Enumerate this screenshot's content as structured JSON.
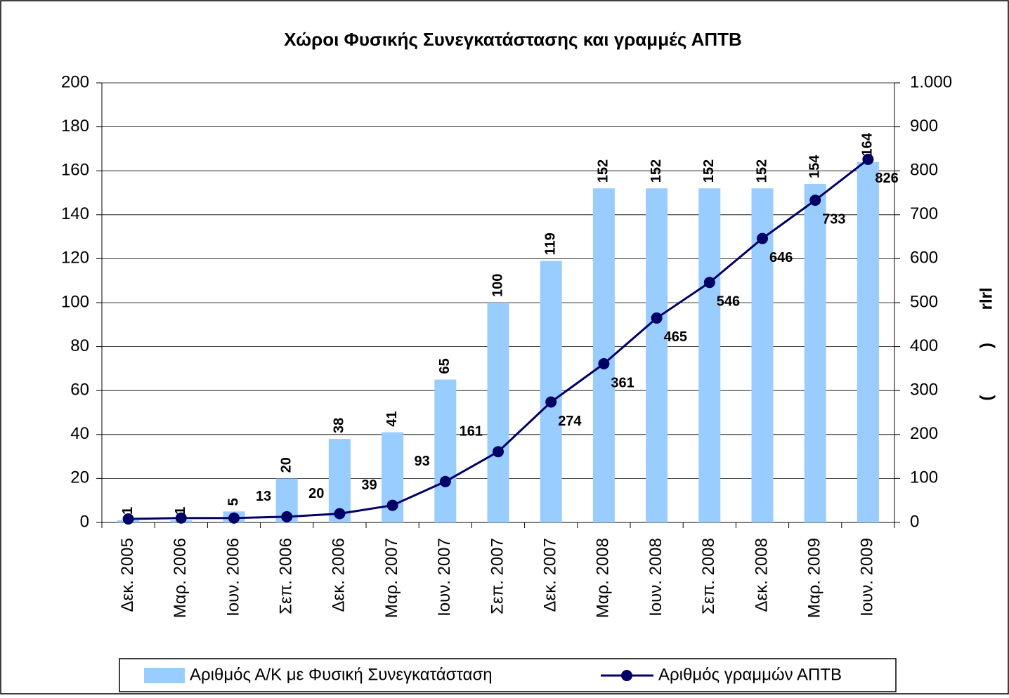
{
  "chart_data": {
    "type": "bar_line",
    "title": "Χώροι Φυσικής Συνεγκατάστασης και γραμμές ΑΠΤΒ",
    "y2label": "(          )       rlrl",
    "categories": [
      "Δεκ. 2005",
      "Μαρ. 2006",
      "Ιουν. 2006",
      "Σεπ. 2006",
      "Δεκ. 2006",
      "Μαρ. 2007",
      "Ιουν. 2007",
      "Σεπ. 2007",
      "Δεκ. 2007",
      "Μαρ. 2008",
      "Ιουν. 2008",
      "Σεπ. 2008",
      "Δεκ. 2008",
      "Μαρ. 2009",
      "Ιουν. 2009"
    ],
    "series": [
      {
        "name": "Αριθμός Α/Κ με Φυσική Συνεγκατάσταση",
        "color": "#99ccff",
        "type": "bar",
        "values": [
          1,
          1,
          5,
          20,
          38,
          41,
          65,
          100,
          119,
          152,
          152,
          152,
          152,
          154,
          164
        ]
      },
      {
        "name": "Αριθμός γραμμών ΑΠΤΒ",
        "color": "#000066",
        "type": "line",
        "axis": "y2",
        "values": [
          8,
          10,
          10,
          13,
          20,
          39,
          93,
          161,
          274,
          361,
          465,
          546,
          646,
          733,
          826
        ],
        "value_labels": [
          null,
          null,
          null,
          "13",
          "20",
          "39",
          "93",
          "161",
          "274",
          "361",
          "465",
          "546",
          "646",
          "733",
          "826"
        ]
      }
    ],
    "ylim": [
      0,
      200
    ],
    "yticks": [
      0,
      20,
      40,
      60,
      80,
      100,
      120,
      140,
      160,
      180,
      200
    ],
    "y2lim": [
      0,
      1000
    ],
    "y2ticks": [
      0,
      100,
      200,
      300,
      400,
      500,
      600,
      700,
      800,
      900,
      {
        "value": 1000,
        "label": "1.000"
      }
    ],
    "grid": true,
    "legend": "bottom"
  }
}
